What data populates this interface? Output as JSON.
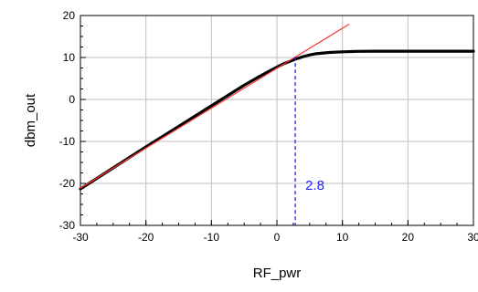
{
  "chart_data": {
    "type": "line",
    "xlabel": "RF_pwr",
    "ylabel": "dbm_out",
    "xlim": [
      -30,
      30
    ],
    "ylim": [
      -30,
      20
    ],
    "x_ticks": [
      -30,
      -20,
      -10,
      0,
      10,
      20,
      30
    ],
    "y_ticks": [
      -30,
      -20,
      -10,
      0,
      10,
      20
    ],
    "grid": true,
    "series": [
      {
        "color": "#000000",
        "x": [
          -30,
          -25,
          -20,
          -15,
          -10,
          -5,
          -3,
          -1,
          0,
          1,
          2,
          2.8,
          4,
          5,
          6,
          8,
          10,
          12,
          15,
          20,
          25,
          30
        ],
        "y": [
          -21.3,
          -16.3,
          -11.3,
          -6.4,
          -1.5,
          3.4,
          5.2,
          6.9,
          7.7,
          8.5,
          9.1,
          9.6,
          10.2,
          10.6,
          10.9,
          11.2,
          11.35,
          11.45,
          11.5,
          11.5,
          11.5,
          11.5
        ]
      },
      {
        "color": "#ff3333",
        "x": [
          -30,
          11
        ],
        "y": [
          -21.1,
          17.9
        ]
      }
    ],
    "marker": {
      "x": 2.8,
      "y": 10.2,
      "label": "2.8",
      "color": "#1f1fff"
    }
  }
}
